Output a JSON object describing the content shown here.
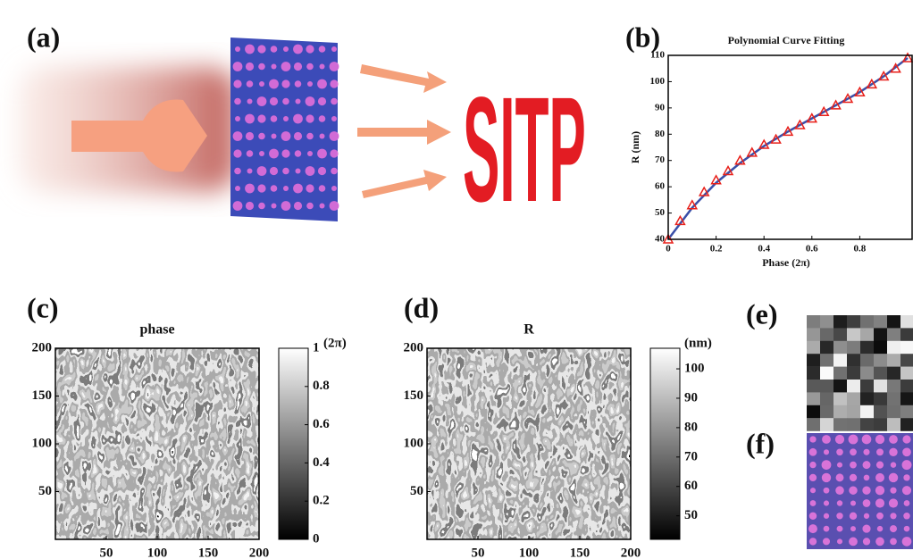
{
  "panel_labels": [
    "(a)",
    "(b)",
    "(c)",
    "(d)",
    "(e)",
    "(f)"
  ],
  "illustration": {
    "text": "SITP"
  },
  "chart_data": [
    {
      "type": "line",
      "title": "Polynomial Curve Fitting",
      "x_label": "Phase (2π)",
      "y_label": "R (nm)",
      "xlim": [
        0,
        1
      ],
      "ylim": [
        40,
        110
      ],
      "xticks": [
        0,
        0.2,
        0.4,
        0.6,
        0.8
      ],
      "yticks": [
        40,
        50,
        60,
        70,
        80,
        90,
        100,
        110
      ],
      "series": [
        {
          "color": "#3a4fa8",
          "x": [
            0,
            0.1,
            0.2,
            0.3,
            0.4,
            0.5,
            0.6,
            0.7,
            0.8,
            0.9,
            1
          ],
          "values": [
            40,
            52,
            61.5,
            69,
            75.5,
            81,
            86,
            91,
            96,
            102,
            109
          ]
        },
        {
          "color": "#e8201a",
          "marker": "triangle",
          "x": [
            0,
            0.05,
            0.1,
            0.15,
            0.2,
            0.25,
            0.3,
            0.35,
            0.4,
            0.45,
            0.5,
            0.55,
            0.6,
            0.65,
            0.7,
            0.75,
            0.8,
            0.85,
            0.9,
            0.95,
            1
          ],
          "values": [
            40,
            47,
            53,
            58,
            62.5,
            66,
            70,
            73,
            76,
            78,
            81,
            83.5,
            86,
            88.5,
            91,
            93.5,
            96,
            99,
            102,
            105,
            109
          ]
        }
      ]
    },
    {
      "type": "heatmap",
      "title": "phase",
      "xlim": [
        0,
        200
      ],
      "ylim": [
        0,
        200
      ],
      "xticks": [
        50,
        100,
        150,
        200
      ],
      "yticks": [
        50,
        100,
        150,
        200
      ],
      "colorbar": {
        "lim": [
          0,
          1
        ],
        "ticks": [
          0,
          0.2,
          0.4,
          0.6,
          0.8,
          1
        ],
        "label": "(2π)"
      }
    },
    {
      "type": "heatmap",
      "title": "R",
      "xlim": [
        0,
        200
      ],
      "ylim": [
        0,
        200
      ],
      "xticks": [
        50,
        100,
        150,
        200
      ],
      "yticks": [
        50,
        100,
        150,
        200
      ],
      "colorbar": {
        "lim": [
          42,
          107
        ],
        "ticks": [
          50,
          60,
          70,
          80,
          90,
          100
        ],
        "label": "(nm)"
      }
    }
  ]
}
